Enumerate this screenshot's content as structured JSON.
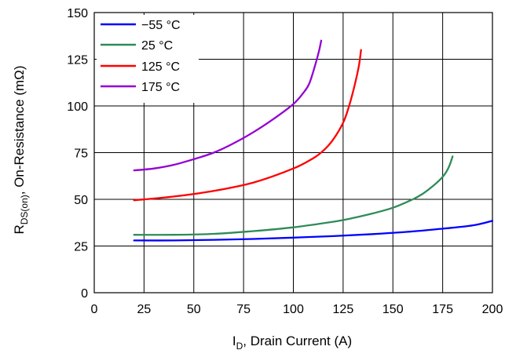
{
  "chart_data": {
    "type": "line",
    "title": "",
    "xlabel_main": "I",
    "xlabel_sub": "D",
    "xlabel_rest": ", Drain Current (A)",
    "ylabel_main": "R",
    "ylabel_sub": "DS(on)",
    "ylabel_rest": ", On-Resistance (mΩ)",
    "xlim": [
      0,
      200
    ],
    "ylim": [
      0,
      150
    ],
    "xticks": [
      0,
      25,
      50,
      75,
      100,
      125,
      150,
      175,
      200
    ],
    "yticks": [
      0,
      25,
      50,
      75,
      100,
      125,
      150
    ],
    "grid": true,
    "legend_position": "top-left",
    "series": [
      {
        "name": "−55 °C",
        "color": "#0000ff",
        "x": [
          20,
          40,
          60,
          80,
          100,
          120,
          140,
          160,
          175,
          190,
          200
        ],
        "y": [
          28,
          28,
          28.3,
          28.8,
          29.5,
          30.3,
          31.4,
          32.8,
          34.3,
          36,
          38.5
        ]
      },
      {
        "name": "25 °C",
        "color": "#2e8b57",
        "x": [
          20,
          40,
          60,
          80,
          100,
          120,
          130,
          140,
          150,
          160,
          165,
          170,
          175,
          178,
          180
        ],
        "y": [
          31,
          31,
          31.5,
          33,
          35,
          38,
          40,
          42.5,
          45.5,
          50,
          53,
          57,
          62,
          67,
          73
        ]
      },
      {
        "name": "125 °C",
        "color": "#ff0000",
        "x": [
          20,
          40,
          60,
          80,
          100,
          110,
          115,
          120,
          125,
          128,
          131,
          133,
          134
        ],
        "y": [
          49.5,
          51.5,
          54.5,
          59,
          66.5,
          72,
          76,
          82,
          91,
          100,
          112,
          122,
          130
        ]
      },
      {
        "name": "175 °C",
        "color": "#9400d3",
        "x": [
          20,
          30,
          40,
          50,
          60,
          70,
          80,
          90,
          100,
          105,
          108,
          111,
          113,
          114
        ],
        "y": [
          65.5,
          66.5,
          68.5,
          71.5,
          75,
          80,
          86,
          93,
          101,
          107,
          112,
          122,
          130,
          135
        ]
      }
    ]
  }
}
